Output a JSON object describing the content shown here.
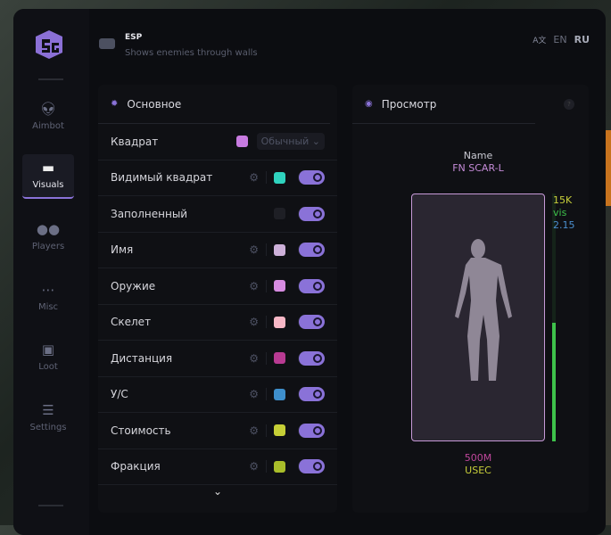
{
  "header": {
    "title": "ESP",
    "subtitle": "Shows enemies through walls",
    "lang_en": "EN",
    "lang_ru": "RU"
  },
  "sidebar": {
    "items": [
      {
        "label": "Aimbot",
        "icon": "alien-icon"
      },
      {
        "label": "Visuals",
        "icon": "vr-headset-icon",
        "active": true
      },
      {
        "label": "Players",
        "icon": "users-icon"
      },
      {
        "label": "Misc",
        "icon": "dots-icon"
      },
      {
        "label": "Loot",
        "icon": "toolbox-icon"
      },
      {
        "label": "Settings",
        "icon": "list-icon"
      }
    ]
  },
  "main": {
    "title": "Основное",
    "box": {
      "label": "Квадрат",
      "color": "#c77be0",
      "mode": "Обычный"
    },
    "rows": [
      {
        "label": "Видимый квадрат",
        "color": "#2fd3be",
        "on": true
      },
      {
        "label": "Заполненный",
        "color": "#1e1f25",
        "on": true,
        "nogear": true
      },
      {
        "label": "Имя",
        "color": "#cdb0d9",
        "on": true
      },
      {
        "label": "Оружие",
        "color": "#d68be0",
        "on": true
      },
      {
        "label": "Скелет",
        "color": "#f7b7c6",
        "on": true
      },
      {
        "label": "Дистанция",
        "color": "#b83a92",
        "on": true
      },
      {
        "label": "У/С",
        "color": "#3e8fcc",
        "on": true
      },
      {
        "label": "Стоимость",
        "color": "#c6cf36",
        "on": true
      },
      {
        "label": "Фракция",
        "color": "#a9bd2a",
        "on": true
      }
    ]
  },
  "preview": {
    "title": "Просмотр",
    "help": "?",
    "name": "Name",
    "weapon": "FN SCAR-L",
    "value": "15K",
    "vis": "vis",
    "kd": "2.15",
    "distance": "500M",
    "faction": "USEC",
    "health": 0.48
  }
}
